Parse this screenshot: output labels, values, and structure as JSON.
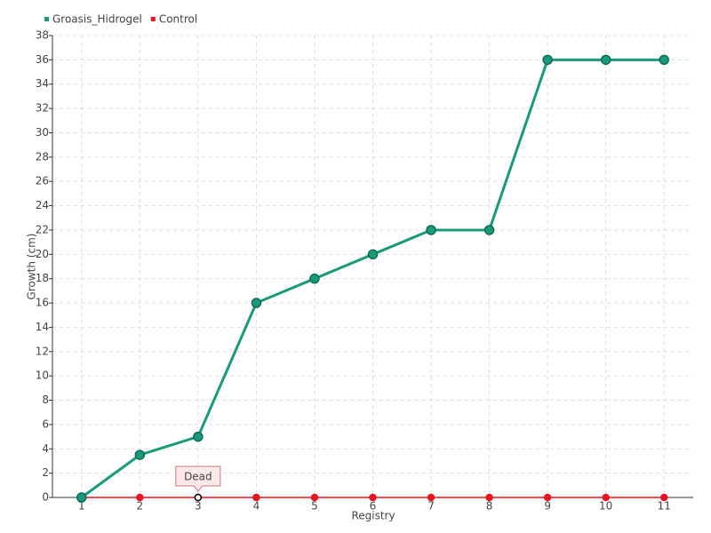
{
  "chart_data": {
    "type": "line",
    "x": [
      1,
      2,
      3,
      4,
      5,
      6,
      7,
      8,
      9,
      10,
      11
    ],
    "xlim": [
      0.5,
      11.5
    ],
    "xticks": [
      1,
      2,
      3,
      4,
      5,
      6,
      7,
      8,
      9,
      10,
      11
    ],
    "ylim": [
      0,
      38
    ],
    "yticks": [
      0,
      2,
      4,
      6,
      8,
      10,
      12,
      14,
      16,
      18,
      20,
      22,
      24,
      26,
      28,
      30,
      32,
      34,
      36,
      38
    ],
    "x_label": "Registry",
    "y_label": "Growth (cm)",
    "grid": true,
    "legend": "top-left",
    "series": [
      {
        "name": "Groasis_Hidrogel",
        "color": "#1a9a7a",
        "values": [
          0,
          3.5,
          5,
          16,
          18,
          20,
          22,
          22,
          36,
          36,
          36
        ]
      },
      {
        "name": "Control",
        "color": "#e8141e",
        "values": [
          0,
          0,
          0,
          0,
          0,
          0,
          0,
          0,
          0,
          0,
          0
        ]
      }
    ],
    "annotations": [
      {
        "text": "Dead",
        "series": 1,
        "x": 3
      }
    ]
  }
}
